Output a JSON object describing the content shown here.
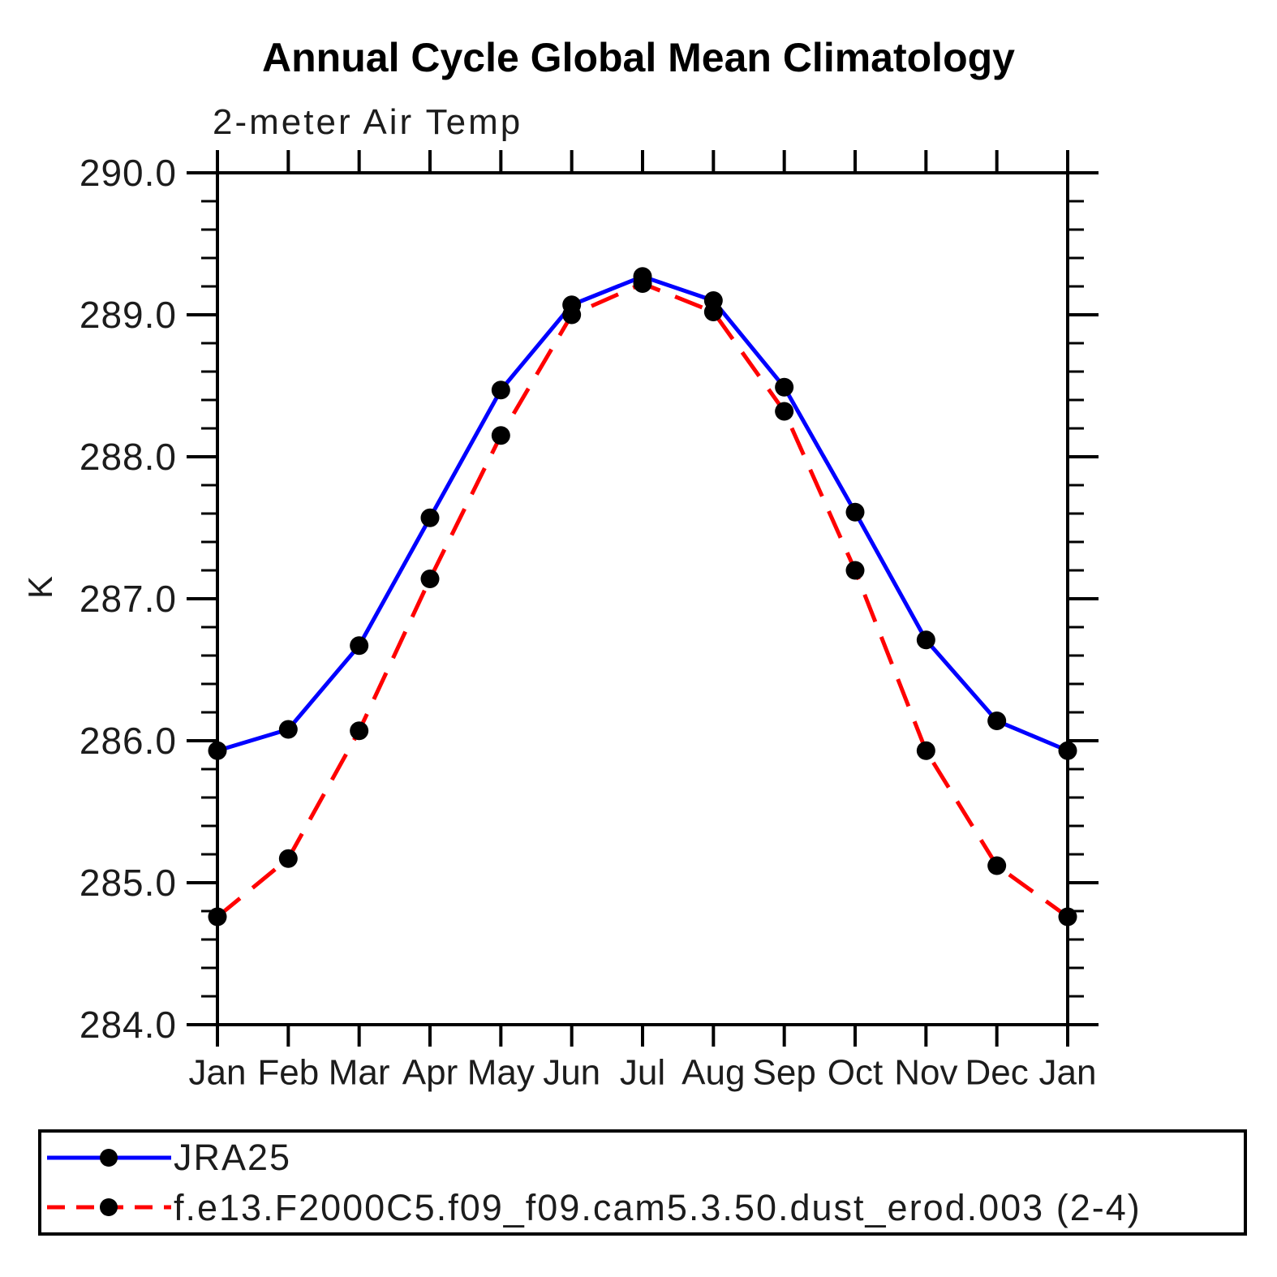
{
  "chart": {
    "title": "Annual Cycle Global Mean Climatology",
    "subtitle": "2-meter Air Temp",
    "ylabel": "K"
  },
  "chart_data": {
    "type": "line",
    "title": "Annual Cycle Global Mean Climatology",
    "subtitle": "2-meter Air Temp",
    "xlabel": "",
    "ylabel": "K",
    "categories": [
      "Jan",
      "Feb",
      "Mar",
      "Apr",
      "May",
      "Jun",
      "Jul",
      "Aug",
      "Sep",
      "Oct",
      "Nov",
      "Dec",
      "Jan"
    ],
    "ylim": [
      284.0,
      290.0
    ],
    "ytick_major_step": 1.0,
    "ytick_minor_step": 0.2,
    "ytick_labels": [
      "284.0",
      "285.0",
      "286.0",
      "287.0",
      "288.0",
      "289.0",
      "290.0"
    ],
    "grid": false,
    "legend_position": "bottom",
    "axis_color": "#000000",
    "marker_color": "#000000",
    "series": [
      {
        "name": "JRA25",
        "color": "#0000ff",
        "style": "solid",
        "marker": "circle",
        "values": [
          285.93,
          286.08,
          286.67,
          287.57,
          288.47,
          289.07,
          289.27,
          289.1,
          288.49,
          287.61,
          286.71,
          286.14,
          285.93
        ]
      },
      {
        "name": "f.e13.F2000C5.f09_f09.cam5.3.50.dust_erod.003 (2-4)",
        "color": "#ff0000",
        "style": "dashed",
        "marker": "circle",
        "values": [
          284.76,
          285.17,
          286.07,
          287.14,
          288.15,
          289.0,
          289.22,
          289.02,
          288.32,
          287.2,
          285.93,
          285.12,
          284.76
        ]
      }
    ]
  }
}
